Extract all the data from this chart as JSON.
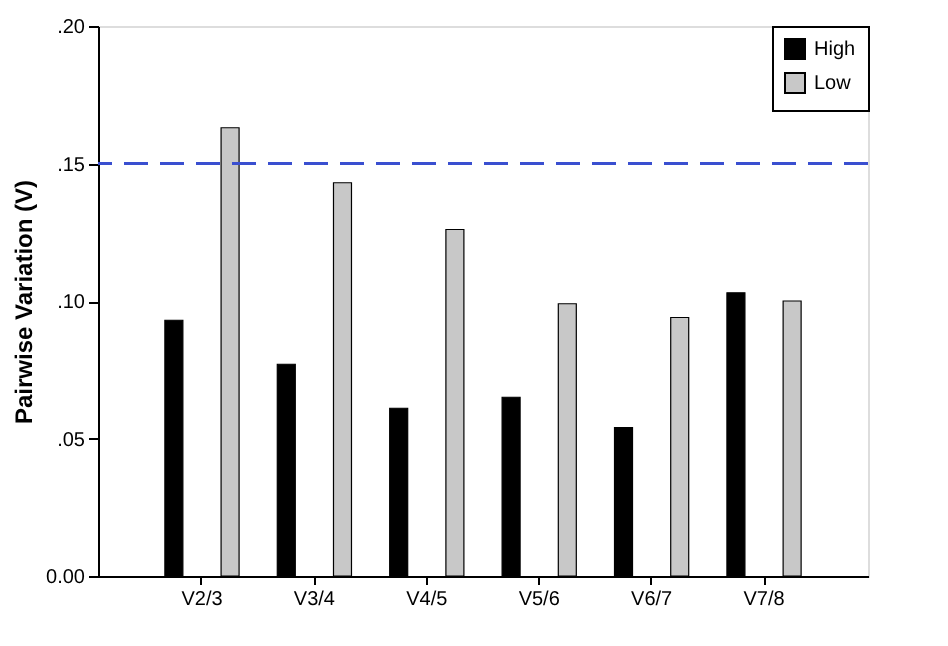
{
  "chart_data": {
    "type": "bar",
    "ylabel": "Pairwise Variation (V)",
    "categories": [
      "V2/3",
      "V3/4",
      "V4/5",
      "V5/6",
      "V6/7",
      "V7/8"
    ],
    "series": [
      {
        "name": "High",
        "color": "#000000",
        "values": [
          0.093,
          0.077,
          0.061,
          0.065,
          0.054,
          0.103
        ]
      },
      {
        "name": "Low",
        "color": "#c8c8c8",
        "values": [
          0.163,
          0.143,
          0.126,
          0.099,
          0.094,
          0.1
        ]
      }
    ],
    "ylim": [
      0,
      0.2
    ],
    "yticks": [
      {
        "value": 0,
        "label": "0.00"
      },
      {
        "value": 0.05,
        "label": ".05"
      },
      {
        "value": 0.1,
        "label": ".10"
      },
      {
        "value": 0.15,
        "label": ".15"
      },
      {
        "value": 0.2,
        "label": ".20"
      }
    ],
    "ref_lines": [
      {
        "axis": "y",
        "value": 0.15,
        "color": "#3a4fd0",
        "line_style": "dashed"
      }
    ],
    "grid": false,
    "legend": "top right"
  }
}
